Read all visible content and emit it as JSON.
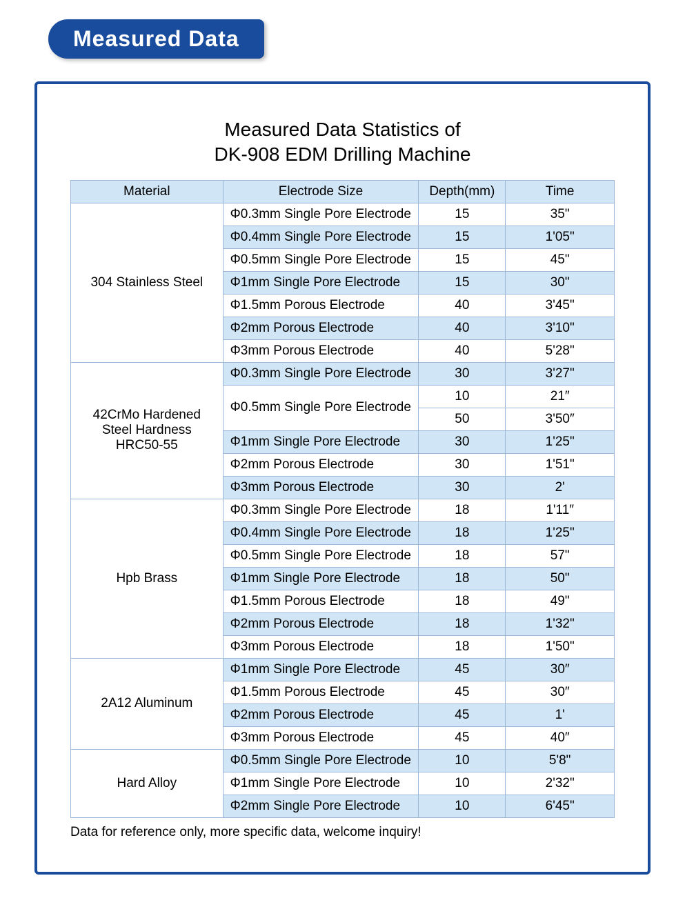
{
  "header_badge": "Measured Data",
  "title_line1": "Measured Data Statistics of",
  "title_line2": "DK-908 EDM Drilling Machine",
  "columns": [
    "Material",
    "Electrode Size",
    "Depth(mm)",
    "Time"
  ],
  "colors": {
    "brand": "#1a4c9e",
    "header_bg": "#d0e5f5",
    "alt_bg": "#d0e5f5",
    "border": "#9db7d8",
    "text": "#000000",
    "bg": "#ffffff"
  },
  "groups": [
    {
      "material": "304 Stainless Steel",
      "rows": [
        {
          "elec": "Φ0.3mm Single Pore Electrode",
          "depth": "15",
          "time": "35\"",
          "alt": false
        },
        {
          "elec": "Φ0.4mm Single Pore Electrode",
          "depth": "15",
          "time": "1'05\"",
          "alt": true
        },
        {
          "elec": "Φ0.5mm Single Pore Electrode",
          "depth": "15",
          "time": "45\"",
          "alt": false
        },
        {
          "elec": "Φ1mm Single Pore Electrode",
          "depth": "15",
          "time": "30\"",
          "alt": true
        },
        {
          "elec": "Φ1.5mm Porous Electrode",
          "depth": "40",
          "time": "3'45\"",
          "alt": false
        },
        {
          "elec": "Φ2mm Porous Electrode",
          "depth": "40",
          "time": "3'10\"",
          "alt": true
        },
        {
          "elec": "Φ3mm Porous Electrode",
          "depth": "40",
          "time": "5'28\"",
          "alt": false
        }
      ]
    },
    {
      "material": "42CrMo Hardened Steel Hardness HRC50-55",
      "rows": [
        {
          "elec": "Φ0.3mm Single Pore Electrode",
          "depth": "30",
          "time": "3'27\"",
          "alt": true
        },
        {
          "elec": "Φ0.5mm Single Pore Electrode",
          "depth": "10",
          "time": "21″",
          "alt": false,
          "elec_rowspan": 2
        },
        {
          "skip_elec": true,
          "depth": "50",
          "time": "3'50″",
          "alt": false
        },
        {
          "elec": "Φ1mm Single Pore Electrode",
          "depth": "30",
          "time": "1'25\"",
          "alt": true
        },
        {
          "elec": "Φ2mm Porous Electrode",
          "depth": "30",
          "time": "1'51\"",
          "alt": false
        },
        {
          "elec": "Φ3mm Porous Electrode",
          "depth": "30",
          "time": "2'",
          "alt": true
        }
      ]
    },
    {
      "material": "Hpb Brass",
      "rows": [
        {
          "elec": "Φ0.3mm Single Pore Electrode",
          "depth": "18",
          "time": "1'11″",
          "alt": false
        },
        {
          "elec": "Φ0.4mm Single Pore Electrode",
          "depth": "18",
          "time": "1'25\"",
          "alt": true
        },
        {
          "elec": "Φ0.5mm Single Pore Electrode",
          "depth": "18",
          "time": "57\"",
          "alt": false
        },
        {
          "elec": "Φ1mm Single Pore Electrode",
          "depth": "18",
          "time": "50\"",
          "alt": true
        },
        {
          "elec": "Φ1.5mm Porous Electrode",
          "depth": "18",
          "time": "49\"",
          "alt": false
        },
        {
          "elec": "Φ2mm Porous Electrode",
          "depth": "18",
          "time": "1'32\"",
          "alt": true
        },
        {
          "elec": "Φ3mm Porous Electrode",
          "depth": "18",
          "time": "1'50\"",
          "alt": false
        }
      ]
    },
    {
      "material": "2A12 Aluminum",
      "rows": [
        {
          "elec": "Φ1mm Single Pore Electrode",
          "depth": "45",
          "time": "30″",
          "alt": true
        },
        {
          "elec": "Φ1.5mm Porous Electrode",
          "depth": "45",
          "time": "30″",
          "alt": false
        },
        {
          "elec": "Φ2mm Porous Electrode",
          "depth": "45",
          "time": "1'",
          "alt": true
        },
        {
          "elec": "Φ3mm Porous Electrode",
          "depth": "45",
          "time": "40″",
          "alt": false
        }
      ]
    },
    {
      "material": "Hard Alloy",
      "rows": [
        {
          "elec": "Φ0.5mm Single Pore Electrode",
          "depth": "10",
          "time": "5'8\"",
          "alt": true
        },
        {
          "elec": "Φ1mm Single Pore Electrode",
          "depth": "10",
          "time": "2'32\"",
          "alt": false
        },
        {
          "elec": "Φ2mm Single Pore Electrode",
          "depth": "10",
          "time": "6'45\"",
          "alt": true
        }
      ]
    }
  ],
  "footnote": "Data for reference only, more specific data, welcome inquiry!"
}
